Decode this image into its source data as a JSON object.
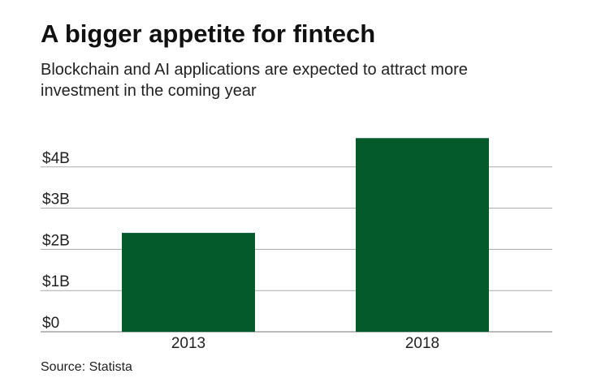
{
  "chart_data": {
    "type": "bar",
    "title": "A bigger appetite for fintech",
    "subtitle": [
      "Blockchain and AI applications are expected to attract more",
      "investment in the coming year"
    ],
    "categories": [
      "2013",
      "2018"
    ],
    "values": [
      2.4,
      4.7
    ],
    "color": "#045a2a",
    "ylim": [
      0,
      5
    ],
    "yticks": [
      {
        "value": 0,
        "label": "$0"
      },
      {
        "value": 1,
        "label": "$1B"
      },
      {
        "value": 2,
        "label": "$2B"
      },
      {
        "value": 3,
        "label": "$3B"
      },
      {
        "value": 4,
        "label": "$4B"
      }
    ],
    "grid": true,
    "source": "Source: Statista"
  }
}
